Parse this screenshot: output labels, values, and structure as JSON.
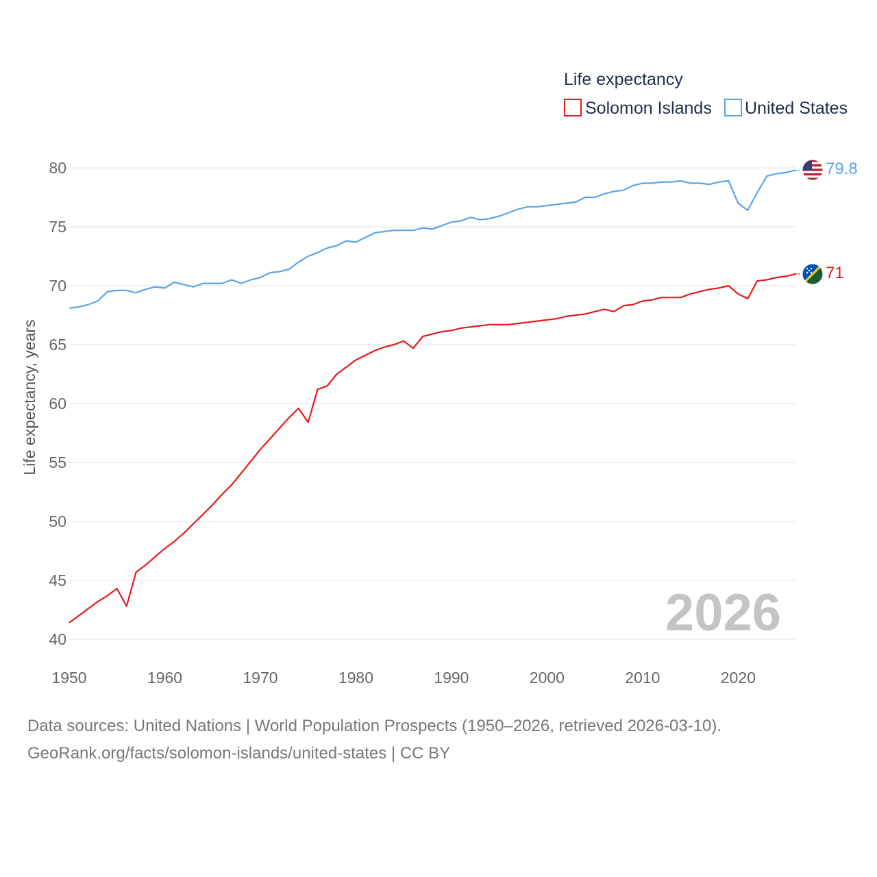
{
  "chart_data": {
    "type": "line",
    "legend_title": "Life expectancy",
    "ylabel": "Life expectancy, years",
    "xlabel": "",
    "xlim": [
      1950,
      2026
    ],
    "ylim": [
      40,
      80
    ],
    "x_ticks": [
      1950,
      1960,
      1970,
      1980,
      1990,
      2000,
      2010,
      2020
    ],
    "y_ticks": [
      40,
      45,
      50,
      55,
      60,
      65,
      70,
      75,
      80
    ],
    "year_label": "2026",
    "grid": true,
    "legend_position": "top-right",
    "x": [
      1950,
      1951,
      1952,
      1953,
      1954,
      1955,
      1956,
      1957,
      1958,
      1959,
      1960,
      1961,
      1962,
      1963,
      1964,
      1965,
      1966,
      1967,
      1968,
      1969,
      1970,
      1971,
      1972,
      1973,
      1974,
      1975,
      1976,
      1977,
      1978,
      1979,
      1980,
      1981,
      1982,
      1983,
      1984,
      1985,
      1986,
      1987,
      1988,
      1989,
      1990,
      1991,
      1992,
      1993,
      1994,
      1995,
      1996,
      1997,
      1998,
      1999,
      2000,
      2001,
      2002,
      2003,
      2004,
      2005,
      2006,
      2007,
      2008,
      2009,
      2010,
      2011,
      2012,
      2013,
      2014,
      2015,
      2016,
      2017,
      2018,
      2019,
      2020,
      2021,
      2022,
      2023,
      2024,
      2025,
      2026
    ],
    "series": [
      {
        "name": "Solomon Islands",
        "color": "#e31a1c",
        "end_label": "71",
        "flag": "solomon-islands-flag-icon",
        "values": [
          41.4,
          42.0,
          42.6,
          43.2,
          43.7,
          44.3,
          42.8,
          45.7,
          46.3,
          47.0,
          47.7,
          48.3,
          49.0,
          49.8,
          50.6,
          51.4,
          52.3,
          53.1,
          54.1,
          55.1,
          56.1,
          57.0,
          57.9,
          58.8,
          59.6,
          58.4,
          61.2,
          61.5,
          62.5,
          63.1,
          63.7,
          64.1,
          64.5,
          64.8,
          65.0,
          65.3,
          64.7,
          65.7,
          65.9,
          66.1,
          66.2,
          66.4,
          66.5,
          66.6,
          66.7,
          66.7,
          66.7,
          66.8,
          66.9,
          67.0,
          67.1,
          67.2,
          67.4,
          67.5,
          67.6,
          67.8,
          68.0,
          67.8,
          68.3,
          68.4,
          68.7,
          68.8,
          69.0,
          69.0,
          69.0,
          69.3,
          69.5,
          69.7,
          69.8,
          70.0,
          69.3,
          68.9,
          70.4,
          70.5,
          70.7,
          70.8,
          71.0
        ]
      },
      {
        "name": "United States",
        "color": "#5ba4e6",
        "end_label": "79.8",
        "flag": "united-states-flag-icon",
        "values": [
          68.1,
          68.2,
          68.4,
          68.7,
          69.5,
          69.6,
          69.6,
          69.4,
          69.7,
          69.9,
          69.8,
          70.3,
          70.1,
          69.9,
          70.2,
          70.2,
          70.2,
          70.5,
          70.2,
          70.5,
          70.7,
          71.1,
          71.2,
          71.4,
          72.0,
          72.5,
          72.8,
          73.2,
          73.4,
          73.8,
          73.7,
          74.1,
          74.5,
          74.6,
          74.7,
          74.7,
          74.7,
          74.9,
          74.8,
          75.1,
          75.4,
          75.5,
          75.8,
          75.6,
          75.7,
          75.9,
          76.2,
          76.5,
          76.7,
          76.7,
          76.8,
          76.9,
          77.0,
          77.1,
          77.5,
          77.5,
          77.8,
          78.0,
          78.1,
          78.5,
          78.7,
          78.7,
          78.8,
          78.8,
          78.9,
          78.7,
          78.7,
          78.6,
          78.8,
          78.9,
          77.0,
          76.4,
          77.9,
          79.3,
          79.5,
          79.6,
          79.8
        ]
      }
    ]
  },
  "footer": {
    "line1": "Data sources: United Nations | World Population Prospects (1950–2026, retrieved 2026-03-10).",
    "line2": "GeoRank.org/facts/solomon-islands/united-states | CC BY"
  }
}
